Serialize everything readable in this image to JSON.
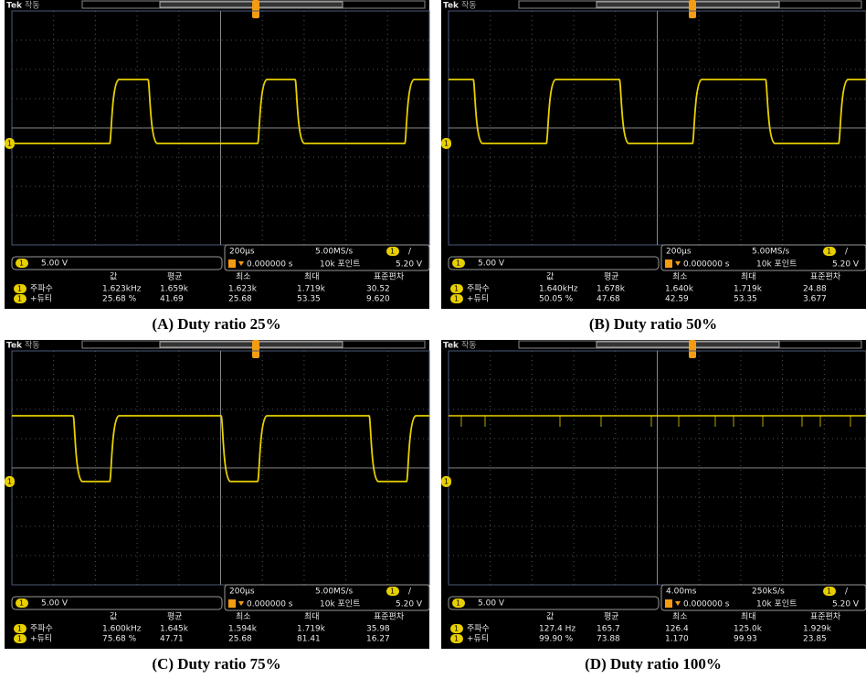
{
  "panels": [
    {
      "header": {
        "brand": "Tek",
        "status": "작동"
      },
      "channel_marker": "1",
      "scale": "5.00 V",
      "timebase": "200µs",
      "sample_rate": "5.00MS/s",
      "trigger_slope": "/",
      "trigger_position": "0.000000 s",
      "record_length": "10k 포인트",
      "trigger_level": "5.20 V",
      "measurements": {
        "columns": [
          "값",
          "평균",
          "최소",
          "최대",
          "표준편차"
        ],
        "rows": [
          {
            "label": "주파수",
            "values": [
              "1.623kHz",
              "1.659k",
              "1.623k",
              "1.719k",
              "30.52"
            ]
          },
          {
            "label": "+듀티",
            "values": [
              "25.68 %",
              "41.69",
              "25.68",
              "53.35",
              "9.620"
            ]
          }
        ]
      },
      "caption": "(A) Duty ratio 25%"
    },
    {
      "header": {
        "brand": "Tek",
        "status": "작동"
      },
      "channel_marker": "1",
      "scale": "5.00 V",
      "timebase": "200µs",
      "sample_rate": "5.00MS/s",
      "trigger_slope": "/",
      "trigger_position": "0.000000 s",
      "record_length": "10k 포인트",
      "trigger_level": "5.20 V",
      "measurements": {
        "columns": [
          "값",
          "평균",
          "최소",
          "최대",
          "표준편차"
        ],
        "rows": [
          {
            "label": "주파수",
            "values": [
              "1.640kHz",
              "1.678k",
              "1.640k",
              "1.719k",
              "24.88"
            ]
          },
          {
            "label": "+듀티",
            "values": [
              "50.05 %",
              "47.68",
              "42.59",
              "53.35",
              "3.677"
            ]
          }
        ]
      },
      "caption": "(B) Duty ratio 50%"
    },
    {
      "header": {
        "brand": "Tek",
        "status": "작동"
      },
      "channel_marker": "1",
      "scale": "5.00 V",
      "timebase": "200µs",
      "sample_rate": "5.00MS/s",
      "trigger_slope": "/",
      "trigger_position": "0.000000 s",
      "record_length": "10k 포인트",
      "trigger_level": "5.20 V",
      "measurements": {
        "columns": [
          "값",
          "평균",
          "최소",
          "최대",
          "표준편차"
        ],
        "rows": [
          {
            "label": "주파수",
            "values": [
              "1.600kHz",
              "1.645k",
              "1.594k",
              "1.719k",
              "35.98"
            ]
          },
          {
            "label": "+듀티",
            "values": [
              "75.68 %",
              "47.71",
              "25.68",
              "81.41",
              "16.27"
            ]
          }
        ]
      },
      "caption": "(C) Duty ratio 75%"
    },
    {
      "header": {
        "brand": "Tek",
        "status": "작동"
      },
      "channel_marker": "1",
      "scale": "5.00 V",
      "timebase": "4.00ms",
      "sample_rate": "250kS/s",
      "trigger_slope": "/",
      "trigger_position": "0.000000 s",
      "record_length": "10k 포인트",
      "trigger_level": "5.20 V",
      "measurements": {
        "columns": [
          "값",
          "평균",
          "최소",
          "최대",
          "표준편차"
        ],
        "rows": [
          {
            "label": "주파수",
            "values": [
              "127.4 Hz",
              "165.7",
              "126.4",
              "125.0k",
              "1.929k"
            ]
          },
          {
            "label": "+듀티",
            "values": [
              "99.90 %",
              "73.88",
              "1.170",
              "99.93",
              "23.85"
            ]
          }
        ]
      },
      "caption": "(D) Duty ratio 100%"
    }
  ]
}
